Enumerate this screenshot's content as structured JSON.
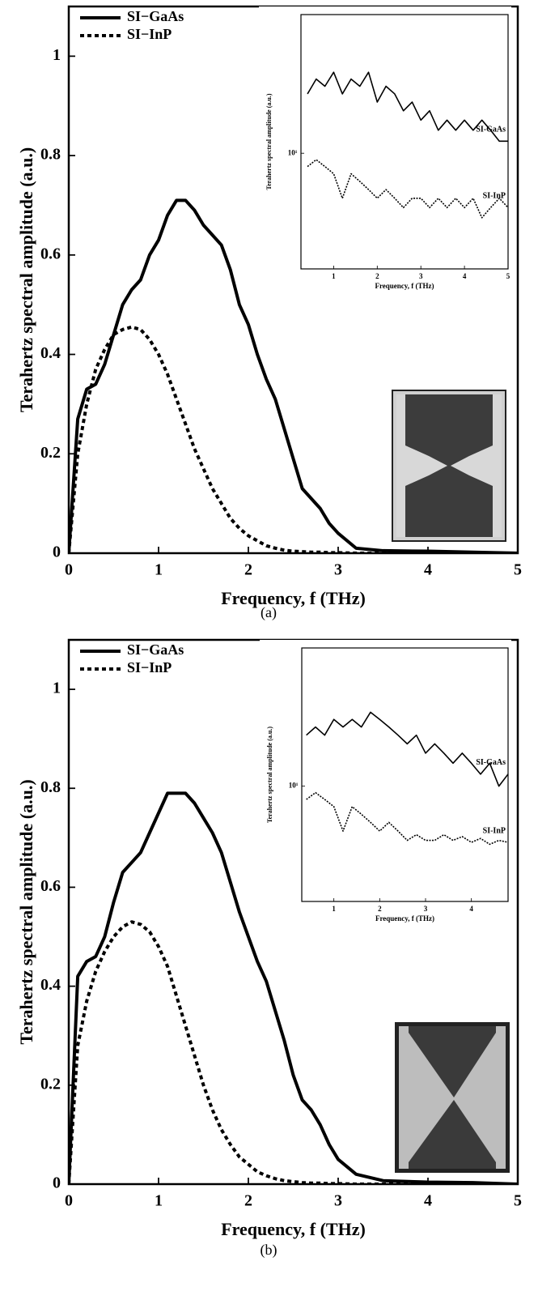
{
  "chart_data": [
    {
      "type": "line",
      "caption": "(a)",
      "x_label": "Frequency, f (THz)",
      "y_label": "Terahertz spectral amplitude (a.u.)",
      "x": [
        0,
        0.1,
        0.2,
        0.3,
        0.4,
        0.5,
        0.6,
        0.7,
        0.8,
        0.9,
        1,
        1.1,
        1.2,
        1.3,
        1.4,
        1.5,
        1.6,
        1.7,
        1.8,
        1.9,
        2,
        2.1,
        2.2,
        2.3,
        2.4,
        2.5,
        2.6,
        2.7,
        2.8,
        2.9,
        3,
        3.2,
        3.5,
        4,
        4.5,
        5
      ],
      "series": [
        {
          "name": "SI−GaAs",
          "color": "#000000",
          "line_style": "solid",
          "values": [
            0,
            0.27,
            0.33,
            0.34,
            0.38,
            0.44,
            0.5,
            0.53,
            0.55,
            0.6,
            0.63,
            0.68,
            0.71,
            0.71,
            0.69,
            0.66,
            0.64,
            0.62,
            0.57,
            0.5,
            0.46,
            0.4,
            0.35,
            0.31,
            0.25,
            0.19,
            0.13,
            0.11,
            0.09,
            0.06,
            0.04,
            0.01,
            0.005,
            0.004,
            0.002,
            0
          ]
        },
        {
          "name": "SI−InP",
          "color": "#000000",
          "line_style": "dotted",
          "values": [
            0,
            0.2,
            0.3,
            0.37,
            0.41,
            0.44,
            0.45,
            0.455,
            0.45,
            0.43,
            0.4,
            0.36,
            0.31,
            0.26,
            0.21,
            0.17,
            0.13,
            0.1,
            0.07,
            0.05,
            0.035,
            0.025,
            0.015,
            0.01,
            0.006,
            0.004,
            0.003,
            0.002,
            0.002,
            0.001,
            0.001,
            0,
            0,
            0,
            0,
            0
          ]
        }
      ],
      "xlim": [
        0,
        5
      ],
      "ylim": [
        0,
        1.1
      ],
      "xticks": [
        0,
        1,
        2,
        3,
        4,
        5
      ],
      "yticks": [
        0,
        0.2,
        0.4,
        0.6,
        0.8,
        1
      ],
      "legend": "upper left"
    },
    {
      "type": "line",
      "y_scale": "log",
      "x_label": "Frequency, f (THz)",
      "y_label": "Terahertz spectral amplitude (a.u.)",
      "x": [
        0.4,
        0.6,
        0.8,
        1,
        1.2,
        1.4,
        1.6,
        1.8,
        2,
        2.2,
        2.4,
        2.6,
        2.8,
        3,
        3.2,
        3.4,
        3.6,
        3.8,
        4,
        4.2,
        4.4,
        4.6,
        4.8,
        5
      ],
      "series": [
        {
          "name": "SI-GaAs",
          "color": "#000000",
          "line_style": "solid",
          "values": [
            16,
            18,
            17,
            19,
            16,
            18,
            17,
            19,
            15,
            17,
            16,
            14,
            15,
            13,
            14,
            12,
            13,
            12,
            13,
            12,
            13,
            12,
            11,
            11
          ]
        },
        {
          "name": "SI-InP",
          "color": "#000000",
          "line_style": "dotted",
          "values": [
            9,
            9.5,
            9,
            8.5,
            7,
            8.5,
            8,
            7.5,
            7,
            7.5,
            7,
            6.5,
            7,
            7,
            6.5,
            7,
            6.5,
            7,
            6.5,
            7,
            6,
            6.5,
            7,
            6.5
          ]
        }
      ],
      "xlim": [
        0.25,
        5
      ],
      "ylim": [
        4,
        30
      ],
      "xticks": [
        1,
        2,
        3,
        4,
        5
      ],
      "yticks": [
        {
          "value": 10,
          "label": "10¹"
        }
      ]
    },
    {
      "type": "line",
      "caption": "(b)",
      "x_label": "Frequency, f (THz)",
      "y_label": "Terahertz spectral amplitude (a.u.)",
      "x": [
        0,
        0.1,
        0.2,
        0.3,
        0.4,
        0.5,
        0.6,
        0.7,
        0.8,
        0.9,
        1,
        1.1,
        1.2,
        1.3,
        1.4,
        1.5,
        1.6,
        1.7,
        1.8,
        1.9,
        2,
        2.1,
        2.2,
        2.3,
        2.4,
        2.5,
        2.6,
        2.7,
        2.8,
        2.9,
        3,
        3.2,
        3.5,
        4,
        4.5,
        5
      ],
      "series": [
        {
          "name": "SI−GaAs",
          "color": "#000000",
          "line_style": "solid",
          "values": [
            0,
            0.42,
            0.45,
            0.46,
            0.5,
            0.57,
            0.63,
            0.65,
            0.67,
            0.71,
            0.75,
            0.79,
            0.79,
            0.79,
            0.77,
            0.74,
            0.71,
            0.67,
            0.61,
            0.55,
            0.5,
            0.45,
            0.41,
            0.35,
            0.29,
            0.22,
            0.17,
            0.15,
            0.12,
            0.08,
            0.05,
            0.02,
            0.007,
            0.004,
            0.003,
            0
          ]
        },
        {
          "name": "SI−InP",
          "color": "#000000",
          "line_style": "dotted",
          "values": [
            0,
            0.28,
            0.37,
            0.43,
            0.47,
            0.5,
            0.52,
            0.53,
            0.525,
            0.51,
            0.48,
            0.44,
            0.38,
            0.32,
            0.26,
            0.2,
            0.15,
            0.11,
            0.08,
            0.055,
            0.04,
            0.025,
            0.017,
            0.011,
            0.007,
            0.005,
            0.003,
            0.002,
            0.002,
            0.001,
            0.001,
            0,
            0,
            0,
            0,
            0
          ]
        }
      ],
      "xlim": [
        0,
        5
      ],
      "ylim": [
        0,
        1.1
      ],
      "xticks": [
        0,
        1,
        2,
        3,
        4,
        5
      ],
      "yticks": [
        0,
        0.2,
        0.4,
        0.6,
        0.8,
        1
      ],
      "legend": "upper left"
    },
    {
      "type": "line",
      "y_scale": "log",
      "x_label": "Frequency, f (THz)",
      "y_label": "Terahertz spectral amplitude (a.u.)",
      "x": [
        0.4,
        0.6,
        0.8,
        1,
        1.2,
        1.4,
        1.6,
        1.8,
        2,
        2.2,
        2.4,
        2.6,
        2.8,
        3,
        3.2,
        3.4,
        3.6,
        3.8,
        4,
        4.2,
        4.4,
        4.6,
        4.8
      ],
      "series": [
        {
          "name": "SI-GaAs",
          "color": "#000000",
          "line_style": "solid",
          "values": [
            15,
            16,
            15,
            17,
            16,
            17,
            16,
            18,
            17,
            16,
            15,
            14,
            15,
            13,
            14,
            13,
            12,
            13,
            12,
            11,
            12,
            10,
            11
          ]
        },
        {
          "name": "SI-InP",
          "color": "#000000",
          "line_style": "dotted",
          "values": [
            9,
            9.5,
            9,
            8.5,
            7,
            8.5,
            8,
            7.5,
            7,
            7.5,
            7,
            6.5,
            6.8,
            6.5,
            6.5,
            6.8,
            6.5,
            6.7,
            6.4,
            6.6,
            6.3,
            6.5,
            6.4
          ]
        }
      ],
      "xlim": [
        0.3,
        4.8
      ],
      "ylim": [
        4,
        30
      ],
      "xticks": [
        1,
        2,
        3,
        4
      ],
      "yticks": [
        {
          "value": 10,
          "label": "10¹"
        }
      ]
    }
  ]
}
